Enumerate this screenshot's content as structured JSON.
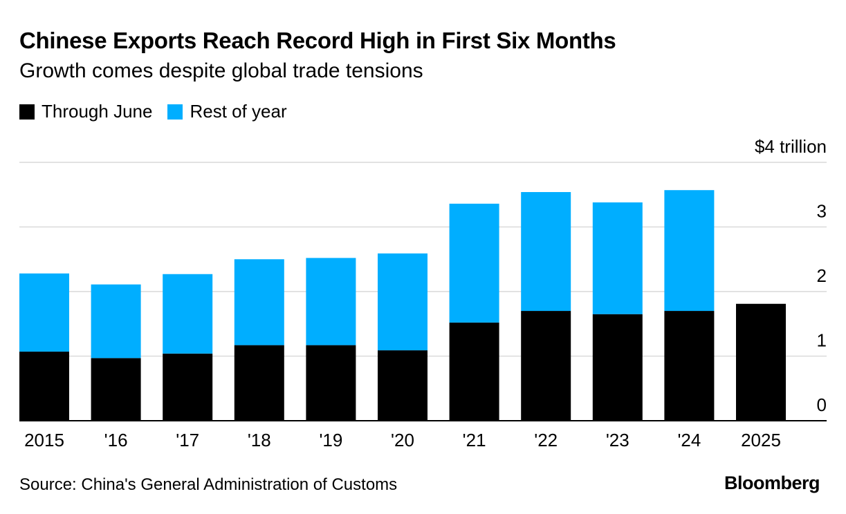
{
  "title": "Chinese Exports Reach Record High in First Six Months",
  "subtitle": "Growth comes despite global trade tensions",
  "legend": [
    {
      "label": "Through June",
      "color": "#000000"
    },
    {
      "label": "Rest of year",
      "color": "#00aeff"
    }
  ],
  "source": "Source: China's General Administration of Customs",
  "brand": "Bloomberg",
  "chart_data": {
    "type": "bar",
    "stacked": true,
    "categories": [
      "2015",
      "'16",
      "'17",
      "'18",
      "'19",
      "'20",
      "'21",
      "'22",
      "'23",
      "'24",
      "2025"
    ],
    "series": [
      {
        "name": "Through June",
        "color": "#000000",
        "values": [
          1.07,
          0.97,
          1.04,
          1.17,
          1.17,
          1.09,
          1.52,
          1.7,
          1.65,
          1.7,
          1.81
        ]
      },
      {
        "name": "Rest of year",
        "color": "#00aeff",
        "values": [
          1.21,
          1.14,
          1.23,
          1.33,
          1.35,
          1.5,
          1.84,
          1.84,
          1.73,
          1.87,
          0
        ]
      }
    ],
    "yticks": [
      0,
      1,
      2,
      3,
      4
    ],
    "ytick_labels": [
      "0",
      "1",
      "2",
      "3",
      "$4 trillion"
    ],
    "ylim": [
      0,
      4
    ],
    "grid": true,
    "legend_position": "top-left",
    "y_axis_position": "right"
  }
}
